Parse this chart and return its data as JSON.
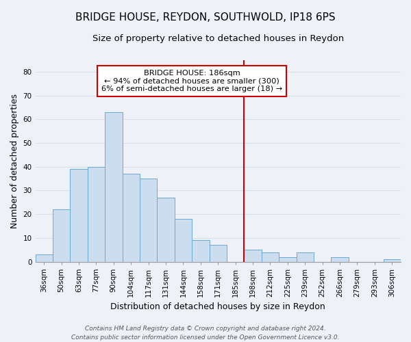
{
  "title": "BRIDGE HOUSE, REYDON, SOUTHWOLD, IP18 6PS",
  "subtitle": "Size of property relative to detached houses in Reydon",
  "xlabel": "Distribution of detached houses by size in Reydon",
  "ylabel": "Number of detached properties",
  "bar_labels": [
    "36sqm",
    "50sqm",
    "63sqm",
    "77sqm",
    "90sqm",
    "104sqm",
    "117sqm",
    "131sqm",
    "144sqm",
    "158sqm",
    "171sqm",
    "185sqm",
    "198sqm",
    "212sqm",
    "225sqm",
    "239sqm",
    "252sqm",
    "266sqm",
    "279sqm",
    "293sqm",
    "306sqm"
  ],
  "bar_values": [
    3,
    22,
    39,
    40,
    63,
    37,
    35,
    27,
    18,
    9,
    7,
    0,
    5,
    4,
    2,
    4,
    0,
    2,
    0,
    0,
    1
  ],
  "bar_color": "#ccddf0",
  "bar_edge_color": "#6aaad4",
  "vline_x_index": 11.5,
  "vline_color": "#cc0000",
  "annotation_title": "BRIDGE HOUSE: 186sqm",
  "annotation_line1": "← 94% of detached houses are smaller (300)",
  "annotation_line2": "6% of semi-detached houses are larger (18) →",
  "annotation_box_color": "#ffffff",
  "annotation_box_edge": "#cc0000",
  "ylim": [
    0,
    85
  ],
  "yticks": [
    0,
    10,
    20,
    30,
    40,
    50,
    60,
    70,
    80
  ],
  "footer_line1": "Contains HM Land Registry data © Crown copyright and database right 2024.",
  "footer_line2": "Contains public sector information licensed under the Open Government Licence v3.0.",
  "background_color": "#eef2f8",
  "grid_color": "#d8dde8",
  "title_fontsize": 11,
  "subtitle_fontsize": 9.5,
  "axis_label_fontsize": 9,
  "tick_fontsize": 7.5,
  "footer_fontsize": 6.5
}
